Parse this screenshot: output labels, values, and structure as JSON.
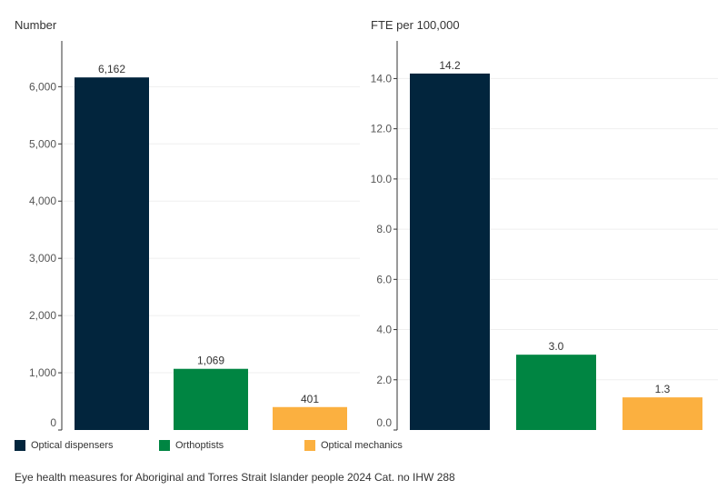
{
  "colors": {
    "optical_dispensers": "#02253d",
    "orthoptists": "#008542",
    "optical_mechanics": "#fbb040",
    "axis": "#333333",
    "grid": "#efefef"
  },
  "legend": [
    {
      "label": "Optical dispensers",
      "color": "#02253d"
    },
    {
      "label": "Orthoptists",
      "color": "#008542"
    },
    {
      "label": "Optical mechanics",
      "color": "#fbb040"
    }
  ],
  "footer": "Eye health measures for Aboriginal and Torres Strait Islander people 2024 Cat. no IHW 288",
  "chart_data": [
    {
      "type": "bar",
      "title": "",
      "ylabel": "Number",
      "xlabel": "",
      "categories": [
        "Optical dispensers",
        "Orthoptists",
        "Optical mechanics"
      ],
      "values": [
        6162,
        1069,
        401
      ],
      "value_labels": [
        "6,162",
        "1,069",
        "401"
      ],
      "ylim": [
        0,
        6800
      ],
      "yticks": [
        0,
        1000,
        2000,
        3000,
        4000,
        5000,
        6000
      ],
      "ytick_labels": [
        "0",
        "1,000",
        "2,000",
        "3,000",
        "4,000",
        "5,000",
        "6,000"
      ],
      "grid": true
    },
    {
      "type": "bar",
      "title": "",
      "ylabel": "FTE per 100,000",
      "xlabel": "",
      "categories": [
        "Optical dispensers",
        "Orthoptists",
        "Optical mechanics"
      ],
      "values": [
        14.2,
        3.0,
        1.3
      ],
      "value_labels": [
        "14.2",
        "3.0",
        "1.3"
      ],
      "ylim": [
        0,
        15.5
      ],
      "yticks": [
        0,
        2,
        4,
        6,
        8,
        10,
        12,
        14
      ],
      "ytick_labels": [
        "0.0",
        "2.0",
        "4.0",
        "6.0",
        "8.0",
        "10.0",
        "12.0",
        "14.0"
      ],
      "grid": true
    }
  ]
}
